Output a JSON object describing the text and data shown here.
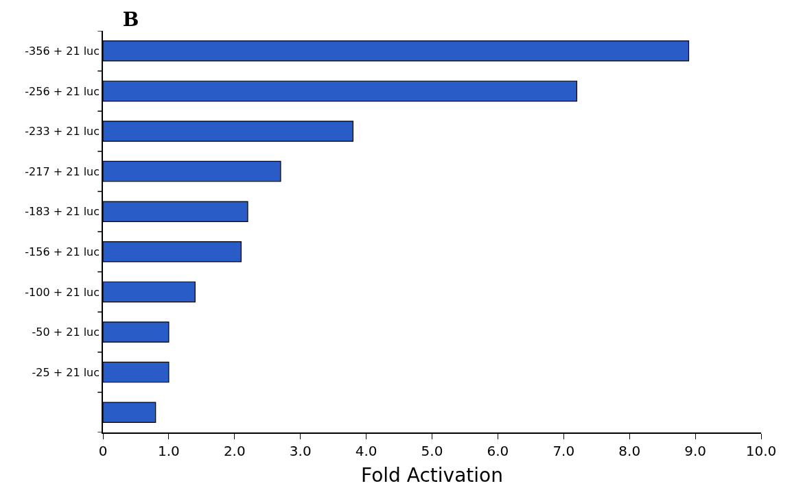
{
  "chart_data": {
    "type": "bar",
    "orientation": "horizontal",
    "title": "B",
    "xlabel": "Fold Activation",
    "categories": [
      "-356 + 21 luc",
      "-256 + 21 luc",
      "-233 + 21 luc",
      "-217 + 21 luc",
      "-183 + 21 luc",
      "-156 + 21 luc",
      "-100 + 21 luc",
      "-50 + 21 luc",
      "-25 + 21 luc",
      null
    ],
    "values": [
      8.9,
      7.2,
      3.8,
      2.7,
      2.2,
      2.1,
      1.4,
      1.0,
      1.0,
      0.8
    ],
    "color": "#2a5cc8",
    "xlim": [
      0,
      10
    ],
    "xticks": [
      0,
      {
        "value": 1,
        "label": "1.0"
      },
      {
        "value": 2,
        "label": "2.0"
      },
      {
        "value": 3,
        "label": "3.0"
      },
      {
        "value": 4,
        "label": "4.0"
      },
      {
        "value": 5,
        "label": "5.0"
      },
      {
        "value": 6,
        "label": "6.0"
      },
      {
        "value": 7,
        "label": "7.0"
      },
      {
        "value": 8,
        "label": "8.0"
      },
      {
        "value": 9,
        "label": "9.0"
      },
      {
        "value": 10,
        "label": "10.0"
      }
    ]
  }
}
